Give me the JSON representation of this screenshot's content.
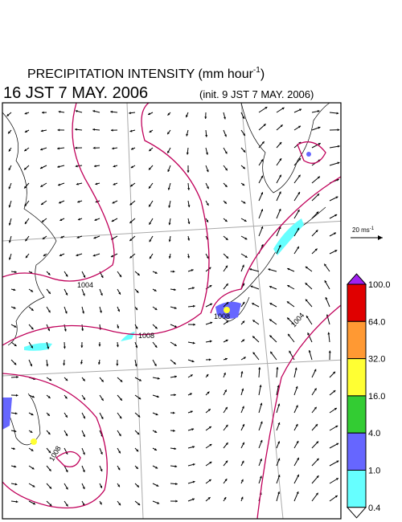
{
  "header": {
    "title": "PRECIPITATION INTENSITY (mm hour",
    "title_exponent": "-1",
    "title_close": ")",
    "valid_time": "16 JST 7 MAY. 2006",
    "init_time": "(init. 9 JST 7 MAY. 2006)"
  },
  "vector_scale": {
    "label": "20 ms",
    "exponent": "-1"
  },
  "isobar_labels": [
    "1004",
    "1008",
    "1008",
    "1004",
    "1008"
  ],
  "colorbar": {
    "labels": [
      "100.0",
      "64.0",
      "32.0",
      "16.0",
      "4.0",
      "1.0",
      "0.4"
    ],
    "colors": [
      "#e00000",
      "#ff9933",
      "#ffff33",
      "#33cc33",
      "#6666ff",
      "#66ffff"
    ],
    "over_color": "#a020f0",
    "under_color": "#ffffff"
  }
}
